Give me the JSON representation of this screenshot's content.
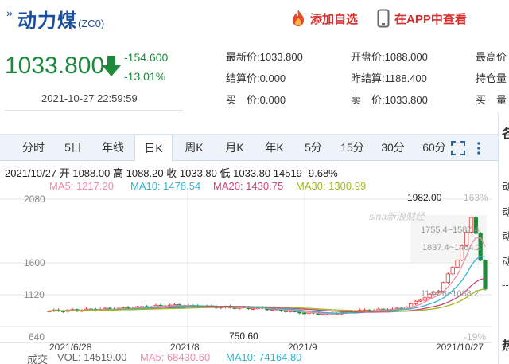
{
  "header": {
    "title_mark": "»",
    "name": "动力煤",
    "code": "(ZC0)",
    "fav_label": "添加自选",
    "app_label": "在APP中查看"
  },
  "price": {
    "last": "1033.800",
    "change": "-154.600",
    "change_pct": "-13.01%",
    "datetime": "2021-10-27 22:59:59"
  },
  "quote": {
    "latest_label": "最新价:",
    "latest": "1033.800",
    "open_label": "开盘价:",
    "open": "1088.000",
    "high_label": "最高价",
    "settle_label": "结算价:",
    "settle": "0.000",
    "prev_settle_label": "昨结算:",
    "prev_settle": "1188.400",
    "oi_label": "持仓量",
    "bid_label": "买　价:",
    "bid": "0.000",
    "ask_label": "卖　价:",
    "ask": "1033.800",
    "bid_vol_label": "买　量"
  },
  "tabs": [
    "分时",
    "5日",
    "年线",
    "日K",
    "周K",
    "月K",
    "年K",
    "5分",
    "15分",
    "30分",
    "60分"
  ],
  "active_tab": "日K",
  "right_strip": [
    "各",
    "动",
    "动",
    "动",
    "动",
    "--",
    "热"
  ],
  "bar_info": {
    "date": "2021/10/27",
    "open_label": "开",
    "open": "1088.00",
    "high_label": "高",
    "high": "1088.20",
    "close_label": "收",
    "close": "1033.80",
    "low_label": "低",
    "low": "1033.80",
    "volume": "14519",
    "pct": "-9.68%"
  },
  "ma": {
    "ma5": "MA5: 1217.20",
    "ma10": "MA10: 1478.54",
    "ma20": "MA20: 1430.75",
    "ma30": "MA30: 1300.99"
  },
  "chart": {
    "y_labels": [
      "2080",
      "1600",
      "1120",
      "640"
    ],
    "pct_labels": [
      "163%",
      "-19%"
    ],
    "x_labels": [
      "2021/6/28",
      "2021/8",
      "2021/9",
      "2021/10/27"
    ],
    "annotations": {
      "high": "1982.00",
      "low": "750.60",
      "ma_a": "1755.4~1587.4",
      "ma_b": "1837.4~1464.2",
      "ma_c": "1144.6~1088.2"
    },
    "watermark": "sina新浪财经"
  },
  "volume_line": {
    "label": "成交",
    "vol": "VOL: 14519.00",
    "ma5": "MA5: 68430.60",
    "ma10": "MA10: 74164.80"
  },
  "colors": {
    "up": "#e53935",
    "down": "#1e8a3c",
    "ma5": "#f08ca6",
    "ma10": "#33b5d0",
    "ma20": "#d0457a",
    "ma30": "#a0b820",
    "title": "#1a4fa0",
    "accent": "#d32f2f"
  },
  "chart_data": {
    "type": "candlestick",
    "y_axis": [
      640,
      2080
    ],
    "x_labels": [
      "2021/6/28",
      "2021/8",
      "2021/9",
      "2021/10/27"
    ],
    "series": [
      {
        "name": "MA5",
        "value": 1217.2
      },
      {
        "name": "MA10",
        "value": 1478.54
      },
      {
        "name": "MA20",
        "value": 1430.75
      },
      {
        "name": "MA30",
        "value": 1300.99
      }
    ],
    "high": 1982.0,
    "low": 750.6
  }
}
